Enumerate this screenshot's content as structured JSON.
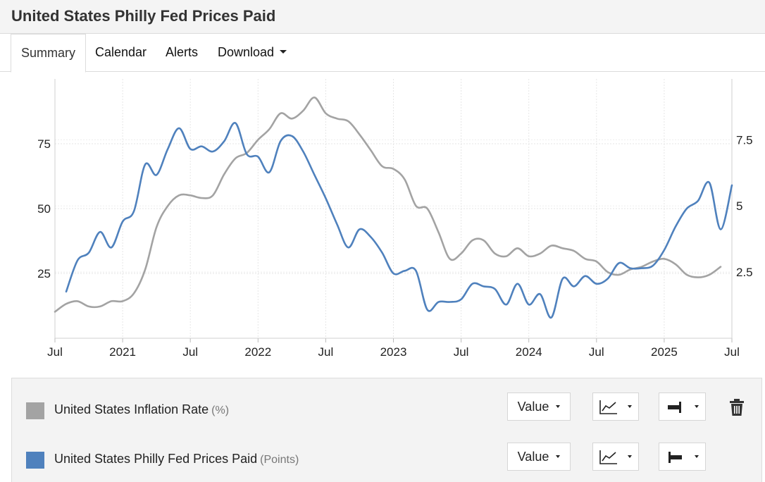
{
  "header": {
    "title": "United States Philly Fed Prices Paid"
  },
  "tabs": [
    {
      "label": "Summary",
      "active": true
    },
    {
      "label": "Calendar"
    },
    {
      "label": "Alerts"
    },
    {
      "label": "Download",
      "has_dropdown": true
    }
  ],
  "legend": {
    "rows": [
      {
        "name": "United States Inflation Rate",
        "unit": "(%)",
        "color": "#a3a3a3",
        "value_label": "Value",
        "chart_type_icon": "line-chart-icon",
        "axis_icon": "right-axis-icon",
        "deletable": true
      },
      {
        "name": "United States Philly Fed Prices Paid",
        "unit": "(Points)",
        "color": "#4f81bd",
        "value_label": "Value",
        "chart_type_icon": "line-chart-icon",
        "axis_icon": "left-axis-icon",
        "deletable": false
      }
    ]
  },
  "chart_data": {
    "type": "line",
    "x_start": "2020-07",
    "x_end": "2025-07",
    "x_ticks": [
      {
        "date": "2020-07",
        "label": "Jul"
      },
      {
        "date": "2021-01",
        "label": "2021"
      },
      {
        "date": "2021-07",
        "label": "Jul"
      },
      {
        "date": "2022-01",
        "label": "2022"
      },
      {
        "date": "2022-07",
        "label": "Jul"
      },
      {
        "date": "2023-01",
        "label": "2023"
      },
      {
        "date": "2023-07",
        "label": "Jul"
      },
      {
        "date": "2024-01",
        "label": "2024"
      },
      {
        "date": "2024-07",
        "label": "Jul"
      },
      {
        "date": "2025-01",
        "label": "2025"
      },
      {
        "date": "2025-07",
        "label": "Jul"
      }
    ],
    "y_left": {
      "ticks": [
        25,
        50,
        75
      ],
      "labels": [
        "25",
        "50",
        "75"
      ],
      "range": [
        0,
        100
      ]
    },
    "y_right": {
      "ticks": [
        2.5,
        5,
        7.5
      ],
      "labels": [
        "2.5",
        "5",
        "7.5"
      ],
      "range": [
        0,
        9.8
      ]
    },
    "grid": true,
    "series": [
      {
        "name": "United States Inflation Rate",
        "color": "#a3a3a3",
        "axis": "right",
        "x": [
          "2020-07",
          "2020-08",
          "2020-09",
          "2020-10",
          "2020-11",
          "2020-12",
          "2021-01",
          "2021-02",
          "2021-03",
          "2021-04",
          "2021-05",
          "2021-06",
          "2021-07",
          "2021-08",
          "2021-09",
          "2021-10",
          "2021-11",
          "2021-12",
          "2022-01",
          "2022-02",
          "2022-03",
          "2022-04",
          "2022-05",
          "2022-06",
          "2022-07",
          "2022-08",
          "2022-09",
          "2022-10",
          "2022-11",
          "2022-12",
          "2023-01",
          "2023-02",
          "2023-03",
          "2023-04",
          "2023-05",
          "2023-06",
          "2023-07",
          "2023-08",
          "2023-09",
          "2023-10",
          "2023-11",
          "2023-12",
          "2024-01",
          "2024-02",
          "2024-03",
          "2024-04",
          "2024-05",
          "2024-06",
          "2024-07",
          "2024-08",
          "2024-09",
          "2024-10",
          "2024-11",
          "2024-12",
          "2025-01",
          "2025-02",
          "2025-03",
          "2025-04",
          "2025-05",
          "2025-06"
        ],
        "values": [
          1.0,
          1.3,
          1.4,
          1.2,
          1.2,
          1.4,
          1.4,
          1.7,
          2.6,
          4.2,
          5.0,
          5.4,
          5.4,
          5.3,
          5.4,
          6.2,
          6.8,
          7.0,
          7.5,
          7.9,
          8.5,
          8.3,
          8.6,
          9.1,
          8.5,
          8.3,
          8.2,
          7.7,
          7.1,
          6.5,
          6.4,
          6.0,
          5.0,
          4.9,
          4.0,
          3.0,
          3.2,
          3.7,
          3.7,
          3.2,
          3.1,
          3.4,
          3.1,
          3.2,
          3.5,
          3.4,
          3.3,
          3.0,
          2.9,
          2.5,
          2.4,
          2.6,
          2.7,
          2.9,
          3.0,
          2.8,
          2.4,
          2.3,
          2.4,
          2.7
        ]
      },
      {
        "name": "United States Philly Fed Prices Paid",
        "color": "#4f81bd",
        "axis": "left",
        "x": [
          "2020-08",
          "2020-09",
          "2020-10",
          "2020-11",
          "2020-12",
          "2021-01",
          "2021-02",
          "2021-03",
          "2021-04",
          "2021-05",
          "2021-06",
          "2021-07",
          "2021-08",
          "2021-09",
          "2021-10",
          "2021-11",
          "2021-12",
          "2022-01",
          "2022-02",
          "2022-03",
          "2022-04",
          "2022-05",
          "2022-06",
          "2022-07",
          "2022-08",
          "2022-09",
          "2022-10",
          "2022-11",
          "2022-12",
          "2023-01",
          "2023-02",
          "2023-03",
          "2023-04",
          "2023-05",
          "2023-06",
          "2023-07",
          "2023-08",
          "2023-09",
          "2023-10",
          "2023-11",
          "2023-12",
          "2024-01",
          "2024-02",
          "2024-03",
          "2024-04",
          "2024-05",
          "2024-06",
          "2024-07",
          "2024-08",
          "2024-09",
          "2024-10",
          "2024-11",
          "2024-12",
          "2025-01",
          "2025-02",
          "2025-03",
          "2025-04",
          "2025-05",
          "2025-06",
          "2025-07"
        ],
        "values": [
          18,
          30,
          33,
          41,
          35,
          45,
          49,
          67,
          63,
          73,
          81,
          73,
          74,
          72,
          76,
          83,
          71,
          70,
          64,
          76,
          78,
          72,
          63,
          54,
          44,
          35,
          42,
          39,
          33,
          25,
          26,
          26,
          11,
          14,
          14,
          15,
          21,
          20,
          19,
          13,
          21,
          13,
          17,
          8,
          23,
          20,
          24,
          21,
          23,
          29,
          27,
          27,
          28,
          34,
          43,
          50,
          53,
          60,
          42,
          59
        ]
      }
    ]
  }
}
